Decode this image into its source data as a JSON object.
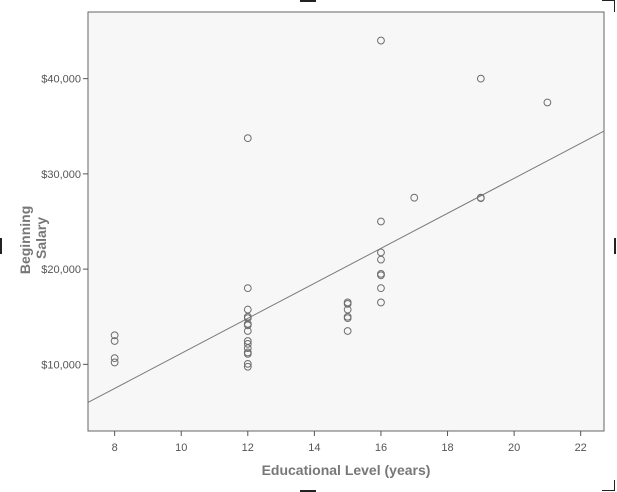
{
  "chart_data": {
    "type": "scatter",
    "xlabel": "Educational Level (years)",
    "ylabel_lines": [
      "Beginning",
      "Salary"
    ],
    "xlim": [
      7.2,
      22.7
    ],
    "ylim": [
      3000,
      47000
    ],
    "x_ticks": [
      8,
      10,
      12,
      14,
      16,
      18,
      20,
      22
    ],
    "x_tick_labels": [
      "8",
      "10",
      "12",
      "14",
      "16",
      "18",
      "20",
      "22"
    ],
    "y_ticks": [
      10000,
      20000,
      30000,
      40000
    ],
    "y_tick_labels": [
      "$10,000",
      "$20,000",
      "$30,000",
      "$40,000"
    ],
    "grid": false,
    "series": [
      {
        "points": [
          [
            8,
            13050
          ],
          [
            8,
            12450
          ],
          [
            8,
            10650
          ],
          [
            8,
            10200
          ],
          [
            12,
            33750
          ],
          [
            12,
            18000
          ],
          [
            12,
            15750
          ],
          [
            12,
            15000
          ],
          [
            12,
            14850
          ],
          [
            12,
            14250
          ],
          [
            12,
            14100
          ],
          [
            12,
            13500
          ],
          [
            12,
            12450
          ],
          [
            12,
            12150
          ],
          [
            12,
            11700
          ],
          [
            12,
            11250
          ],
          [
            12,
            11100
          ],
          [
            12,
            10050
          ],
          [
            12,
            9750
          ],
          [
            15,
            16500
          ],
          [
            15,
            16350
          ],
          [
            15,
            15750
          ],
          [
            15,
            15000
          ],
          [
            15,
            14850
          ],
          [
            15,
            13500
          ],
          [
            16,
            44000
          ],
          [
            16,
            25000
          ],
          [
            16,
            21750
          ],
          [
            16,
            21000
          ],
          [
            16,
            19500
          ],
          [
            16,
            19350
          ],
          [
            16,
            18000
          ],
          [
            16,
            16500
          ],
          [
            17,
            27500
          ],
          [
            19,
            40000
          ],
          [
            19,
            27500
          ],
          [
            19,
            27450
          ],
          [
            21,
            37500
          ]
        ]
      }
    ],
    "fit_line": {
      "type": "linear",
      "endpoints": [
        [
          7.2,
          6000
        ],
        [
          22.7,
          34500
        ]
      ]
    },
    "colors": {
      "plot_background": "#f7f7f7",
      "marker": "#6e6e6e",
      "fit_line": "#7a7a7a",
      "axis": "#555555"
    }
  }
}
